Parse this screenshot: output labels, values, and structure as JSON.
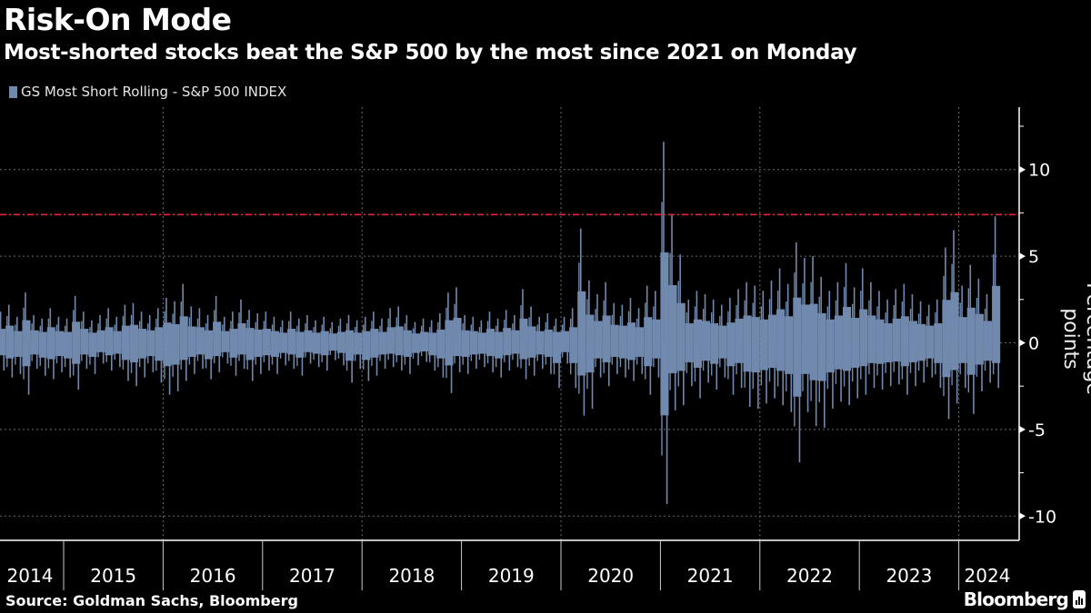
{
  "header": {
    "title": "Risk-On Mode",
    "subtitle": "Most-shorted stocks beat the S&P 500 by the most since 2021 on Monday"
  },
  "footer": {
    "source": "Source: Goldman Sachs, Bloomberg",
    "logo": "Bloomberg"
  },
  "chart_data": {
    "type": "bar",
    "series": [
      {
        "name": "GS Most Short Rolling - S&P 500 INDEX",
        "color": "#7089ad"
      }
    ],
    "ylabel": "Percentage points",
    "ylim": [
      -11.4,
      13.6
    ],
    "yticks": [
      "10",
      "5",
      "0",
      "-5",
      "-10"
    ],
    "ytick_values": [
      10,
      5,
      0,
      -5,
      -10
    ],
    "xticks": [
      "2014",
      "2015",
      "2016",
      "2017",
      "2018",
      "2019",
      "2020",
      "2021",
      "2022",
      "2023",
      "2024"
    ],
    "reference_line": {
      "value": 7.4,
      "color": "#e8253a",
      "style": "dash-dot"
    },
    "grid": true,
    "legend_position": "top-left",
    "months": [
      "2014-05",
      "2014-06",
      "2014-07",
      "2014-08",
      "2014-09",
      "2014-10",
      "2014-11",
      "2014-12",
      "2015-01",
      "2015-02",
      "2015-03",
      "2015-04",
      "2015-05",
      "2015-06",
      "2015-07",
      "2015-08",
      "2015-09",
      "2015-10",
      "2015-11",
      "2015-12",
      "2016-01",
      "2016-02",
      "2016-03",
      "2016-04",
      "2016-05",
      "2016-06",
      "2016-07",
      "2016-08",
      "2016-09",
      "2016-10",
      "2016-11",
      "2016-12",
      "2017-01",
      "2017-02",
      "2017-03",
      "2017-04",
      "2017-05",
      "2017-06",
      "2017-07",
      "2017-08",
      "2017-09",
      "2017-10",
      "2017-11",
      "2017-12",
      "2018-01",
      "2018-02",
      "2018-03",
      "2018-04",
      "2018-05",
      "2018-06",
      "2018-07",
      "2018-08",
      "2018-09",
      "2018-10",
      "2018-11",
      "2018-12",
      "2019-01",
      "2019-02",
      "2019-03",
      "2019-04",
      "2019-05",
      "2019-06",
      "2019-07",
      "2019-08",
      "2019-09",
      "2019-10",
      "2019-11",
      "2019-12",
      "2020-01",
      "2020-02",
      "2020-03",
      "2020-04",
      "2020-05",
      "2020-06",
      "2020-07",
      "2020-08",
      "2020-09",
      "2020-10",
      "2020-11",
      "2020-12",
      "2021-01",
      "2021-02",
      "2021-03",
      "2021-04",
      "2021-05",
      "2021-06",
      "2021-07",
      "2021-08",
      "2021-09",
      "2021-10",
      "2021-11",
      "2021-12",
      "2022-01",
      "2022-02",
      "2022-03",
      "2022-04",
      "2022-05",
      "2022-06",
      "2022-07",
      "2022-08",
      "2022-09",
      "2022-10",
      "2022-11",
      "2022-12",
      "2023-01",
      "2023-02",
      "2023-03",
      "2023-04",
      "2023-05",
      "2023-06",
      "2023-07",
      "2023-08",
      "2023-09",
      "2023-10",
      "2023-11",
      "2023-12",
      "2024-01",
      "2024-02",
      "2024-03",
      "2024-04",
      "2024-05"
    ],
    "monthly_high": [
      1.8,
      2.2,
      1.5,
      2.9,
      1.6,
      1.4,
      2.0,
      1.5,
      1.4,
      2.7,
      1.8,
      1.3,
      1.6,
      2.0,
      1.5,
      2.2,
      2.3,
      1.8,
      1.6,
      2.0,
      2.6,
      2.4,
      3.4,
      2.1,
      2.0,
      1.6,
      2.7,
      1.5,
      1.8,
      2.5,
      1.9,
      1.7,
      1.8,
      1.5,
      1.3,
      1.8,
      1.4,
      1.6,
      1.3,
      1.5,
      1.2,
      1.4,
      1.6,
      1.3,
      1.5,
      1.8,
      1.4,
      2.0,
      2.1,
      1.6,
      1.2,
      1.4,
      1.3,
      1.7,
      2.9,
      3.2,
      1.6,
      1.5,
      1.3,
      1.8,
      1.4,
      1.9,
      1.6,
      3.1,
      2.1,
      1.5,
      1.7,
      1.4,
      1.5,
      2.0,
      6.6,
      3.6,
      2.8,
      3.5,
      2.3,
      2.2,
      2.6,
      2.0,
      3.3,
      3.0,
      11.6,
      7.4,
      5.1,
      2.5,
      3.0,
      2.8,
      2.5,
      2.2,
      2.6,
      3.1,
      3.5,
      3.3,
      3.0,
      3.6,
      4.3,
      3.4,
      5.8,
      4.9,
      5.0,
      3.8,
      3.0,
      3.5,
      4.6,
      3.2,
      4.3,
      3.5,
      3.0,
      2.5,
      3.1,
      3.4,
      2.8,
      2.4,
      2.2,
      2.5,
      5.5,
      6.5,
      3.3,
      4.5,
      3.7,
      2.8,
      7.3
    ],
    "monthly_low": [
      -1.6,
      -2.0,
      -1.8,
      -3.0,
      -1.5,
      -1.9,
      -2.1,
      -1.7,
      -2.0,
      -2.7,
      -1.5,
      -1.8,
      -1.2,
      -1.6,
      -1.4,
      -2.2,
      -2.5,
      -2.0,
      -1.7,
      -2.3,
      -3.0,
      -2.8,
      -2.2,
      -1.8,
      -1.5,
      -2.1,
      -1.7,
      -1.2,
      -1.9,
      -1.5,
      -2.2,
      -1.8,
      -1.6,
      -1.8,
      -1.3,
      -1.5,
      -1.9,
      -1.2,
      -1.4,
      -1.6,
      -1.0,
      -1.3,
      -2.3,
      -1.5,
      -2.2,
      -1.9,
      -1.5,
      -1.4,
      -1.6,
      -1.8,
      -1.3,
      -1.1,
      -1.6,
      -2.0,
      -2.9,
      -1.7,
      -1.8,
      -1.5,
      -1.4,
      -1.7,
      -2.0,
      -1.6,
      -1.4,
      -2.1,
      -1.9,
      -1.5,
      -1.8,
      -2.6,
      -1.2,
      -2.6,
      -4.2,
      -3.8,
      -2.0,
      -2.5,
      -1.8,
      -2.0,
      -2.2,
      -1.8,
      -3.0,
      -2.0,
      -9.3,
      -3.9,
      -3.6,
      -2.5,
      -3.2,
      -2.3,
      -2.7,
      -2.0,
      -3.0,
      -2.6,
      -3.7,
      -3.8,
      -3.5,
      -3.2,
      -3.6,
      -4.0,
      -6.9,
      -4.0,
      -4.8,
      -4.9,
      -3.8,
      -3.4,
      -3.6,
      -3.2,
      -3.0,
      -2.6,
      -2.7,
      -2.5,
      -2.4,
      -3.0,
      -2.5,
      -2.3,
      -2.0,
      -2.6,
      -4.4,
      -3.5,
      -2.6,
      -4.1,
      -2.8,
      -2.3,
      -2.6
    ]
  }
}
